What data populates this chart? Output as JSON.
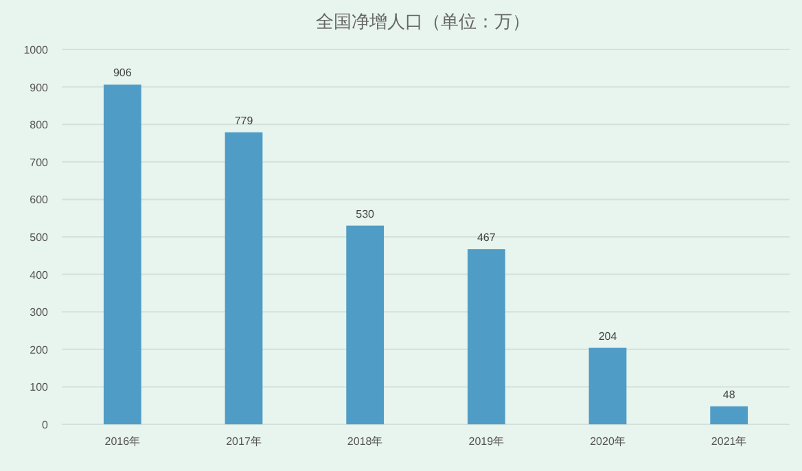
{
  "chart_data": {
    "type": "bar",
    "title": "全国净增人口（单位：万）",
    "categories": [
      "2016年",
      "2017年",
      "2018年",
      "2019年",
      "2020年",
      "2021年"
    ],
    "values": [
      906,
      779,
      530,
      467,
      204,
      48
    ],
    "color": "#4f9cc6",
    "ylim": [
      0,
      1000
    ],
    "yticks": [
      0,
      100,
      200,
      300,
      400,
      500,
      600,
      700,
      800,
      900,
      1000
    ],
    "grid": "y",
    "data_labels": true
  }
}
